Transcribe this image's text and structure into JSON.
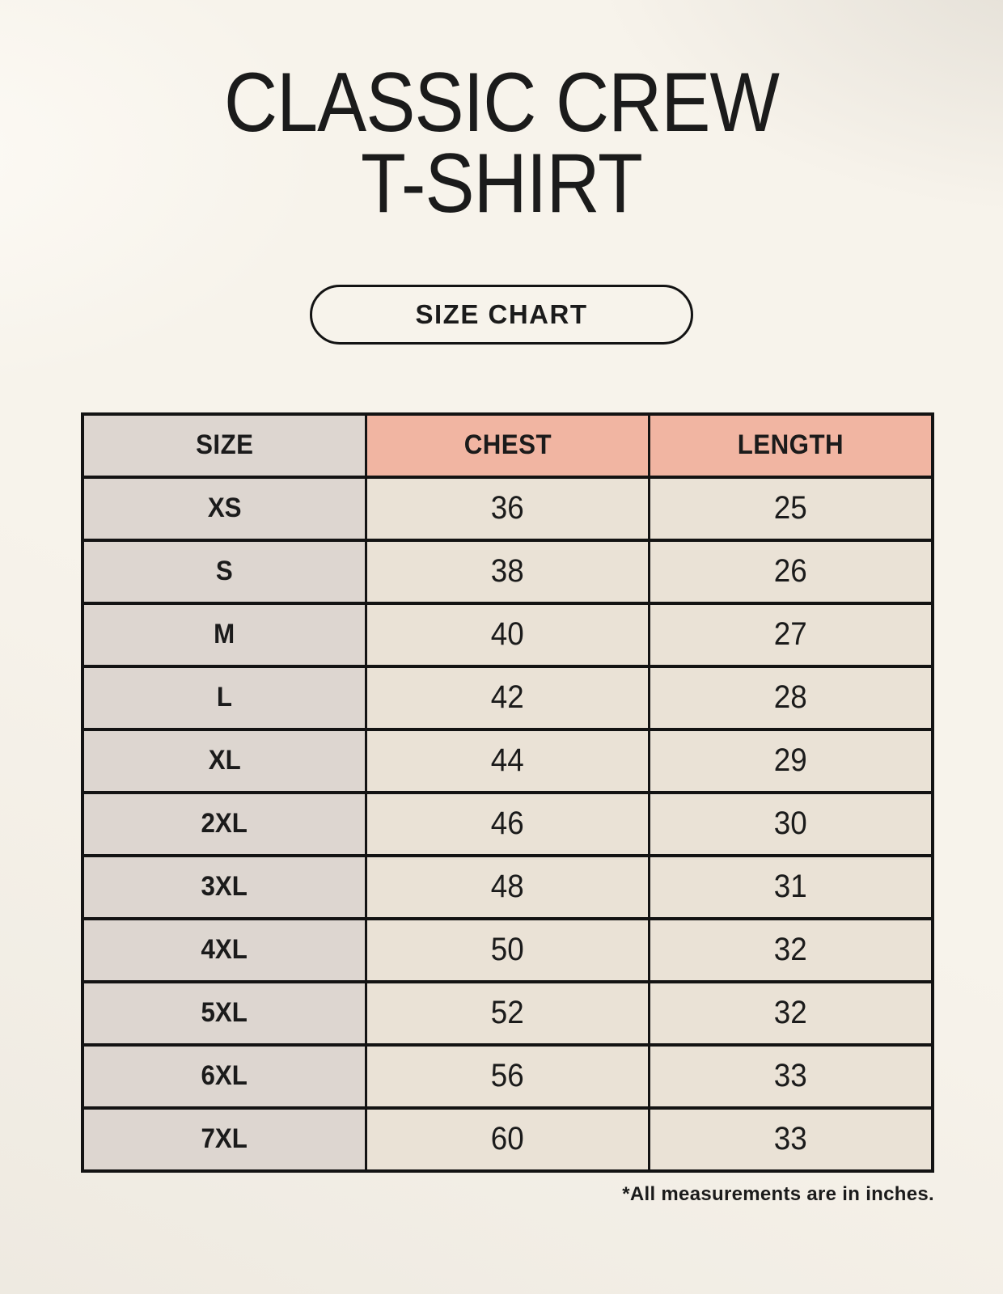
{
  "header": {
    "title_line1": "CLASSIC CREW",
    "title_line2": "T-SHIRT",
    "badge_label": "SIZE CHART"
  },
  "footer": {
    "note": "*All measurements are in inches."
  },
  "colors": {
    "page_bg": "#f7f3eb",
    "accent_salmon": "#f1b5a2",
    "size_col_gray": "#ddd6d0",
    "cell_cream": "#eae2d6",
    "table_border": "#131313",
    "text": "#1b1b1b"
  },
  "chart_data": {
    "type": "table",
    "title": "Classic Crew T-Shirt Size Chart",
    "units": "inches",
    "columns": [
      "SIZE",
      "CHEST",
      "LENGTH"
    ],
    "rows": [
      {
        "size": "XS",
        "chest": "36",
        "length": "25"
      },
      {
        "size": "S",
        "chest": "38",
        "length": "26"
      },
      {
        "size": "M",
        "chest": "40",
        "length": "27"
      },
      {
        "size": "L",
        "chest": "42",
        "length": "28"
      },
      {
        "size": "XL",
        "chest": "44",
        "length": "29"
      },
      {
        "size": "2XL",
        "chest": "46",
        "length": "30"
      },
      {
        "size": "3XL",
        "chest": "48",
        "length": "31"
      },
      {
        "size": "4XL",
        "chest": "50",
        "length": "32"
      },
      {
        "size": "5XL",
        "chest": "52",
        "length": "32"
      },
      {
        "size": "6XL",
        "chest": "56",
        "length": "33"
      },
      {
        "size": "7XL",
        "chest": "60",
        "length": "33"
      }
    ]
  }
}
